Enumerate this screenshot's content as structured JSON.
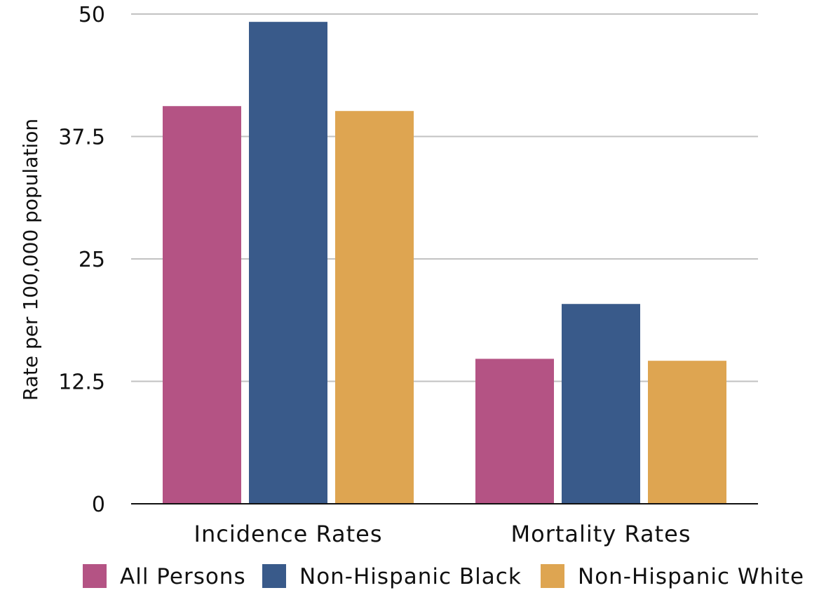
{
  "chart_data": {
    "type": "bar",
    "title": "",
    "xlabel": "",
    "ylabel": "Rate per 100,000 population",
    "categories": [
      "Incidence Rates",
      "Mortality Rates"
    ],
    "series": [
      {
        "name": "All Persons",
        "color": "#b45384",
        "values": [
          40.6,
          14.8
        ]
      },
      {
        "name": "Non-Hispanic Black",
        "color": "#395a8a",
        "values": [
          49.2,
          20.4
        ]
      },
      {
        "name": "Non-Hispanic White",
        "color": "#dea551",
        "values": [
          40.1,
          14.6
        ]
      }
    ],
    "ylim": [
      0,
      50
    ],
    "yticks": [
      "0",
      "12.5",
      "25",
      "37.5",
      "50"
    ],
    "grid": true,
    "legend": "bottom"
  }
}
